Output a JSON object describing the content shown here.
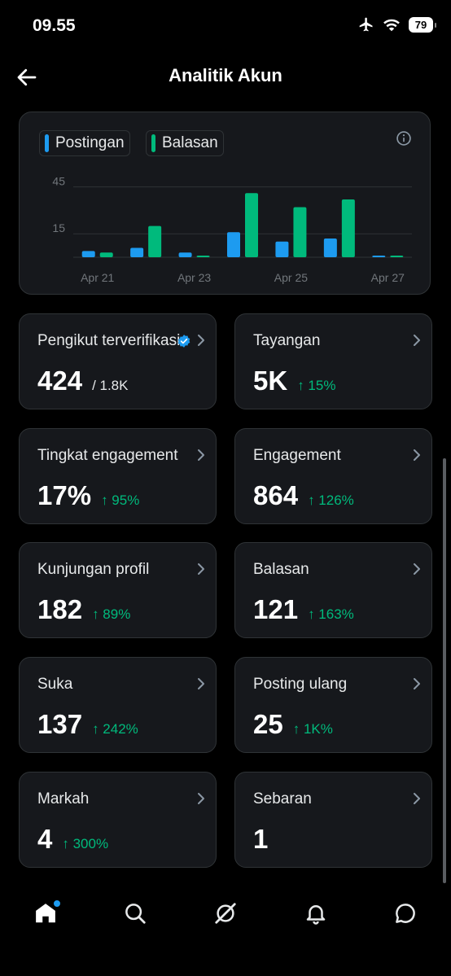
{
  "status": {
    "time": "09.55",
    "battery": "79"
  },
  "header": {
    "title": "Analitik Akun"
  },
  "colors": {
    "posts": "#1d9bf0",
    "replies": "#00ba7c",
    "accent": "#1d9bf0",
    "positive": "#00ba7c"
  },
  "chart_data": {
    "type": "bar",
    "legend": [
      "Postingan",
      "Balasan"
    ],
    "x_tick_labels": [
      "Apr 21",
      "Apr 23",
      "Apr 25",
      "Apr 27"
    ],
    "categories": [
      "Apr 21",
      "Apr 22",
      "Apr 23",
      "Apr 24",
      "Apr 25",
      "Apr 26",
      "Apr 27"
    ],
    "series": [
      {
        "name": "Postingan",
        "values": [
          4,
          6,
          3,
          16,
          10,
          12,
          1
        ]
      },
      {
        "name": "Balasan",
        "values": [
          3,
          20,
          1,
          41,
          32,
          37,
          0
        ]
      }
    ],
    "y_ticks": [
      15,
      45
    ],
    "ylim": [
      0,
      50
    ],
    "grid": true
  },
  "tiles": [
    {
      "label": "Pengikut terverifikasi",
      "value": "424",
      "sub": "/ 1.8K",
      "change": "",
      "verified": true
    },
    {
      "label": "Tayangan",
      "value": "5K",
      "sub": "",
      "change": "↑ 15%"
    },
    {
      "label": "Tingkat engagement",
      "value": "17%",
      "sub": "",
      "change": "↑ 95%"
    },
    {
      "label": "Engagement",
      "value": "864",
      "sub": "",
      "change": "↑ 126%"
    },
    {
      "label": "Kunjungan profil",
      "value": "182",
      "sub": "",
      "change": "↑ 89%"
    },
    {
      "label": "Balasan",
      "value": "121",
      "sub": "",
      "change": "↑ 163%"
    },
    {
      "label": "Suka",
      "value": "137",
      "sub": "",
      "change": "↑ 242%"
    },
    {
      "label": "Posting ulang",
      "value": "25",
      "sub": "",
      "change": "↑ 1K%"
    },
    {
      "label": "Markah",
      "value": "4",
      "sub": "",
      "change": "↑ 300%"
    },
    {
      "label": "Sebaran",
      "value": "1",
      "sub": "",
      "change": ""
    }
  ],
  "nav": [
    {
      "icon": "home-icon",
      "active": true
    },
    {
      "icon": "search-icon"
    },
    {
      "icon": "grok-icon"
    },
    {
      "icon": "bell-icon"
    },
    {
      "icon": "messages-icon"
    }
  ]
}
